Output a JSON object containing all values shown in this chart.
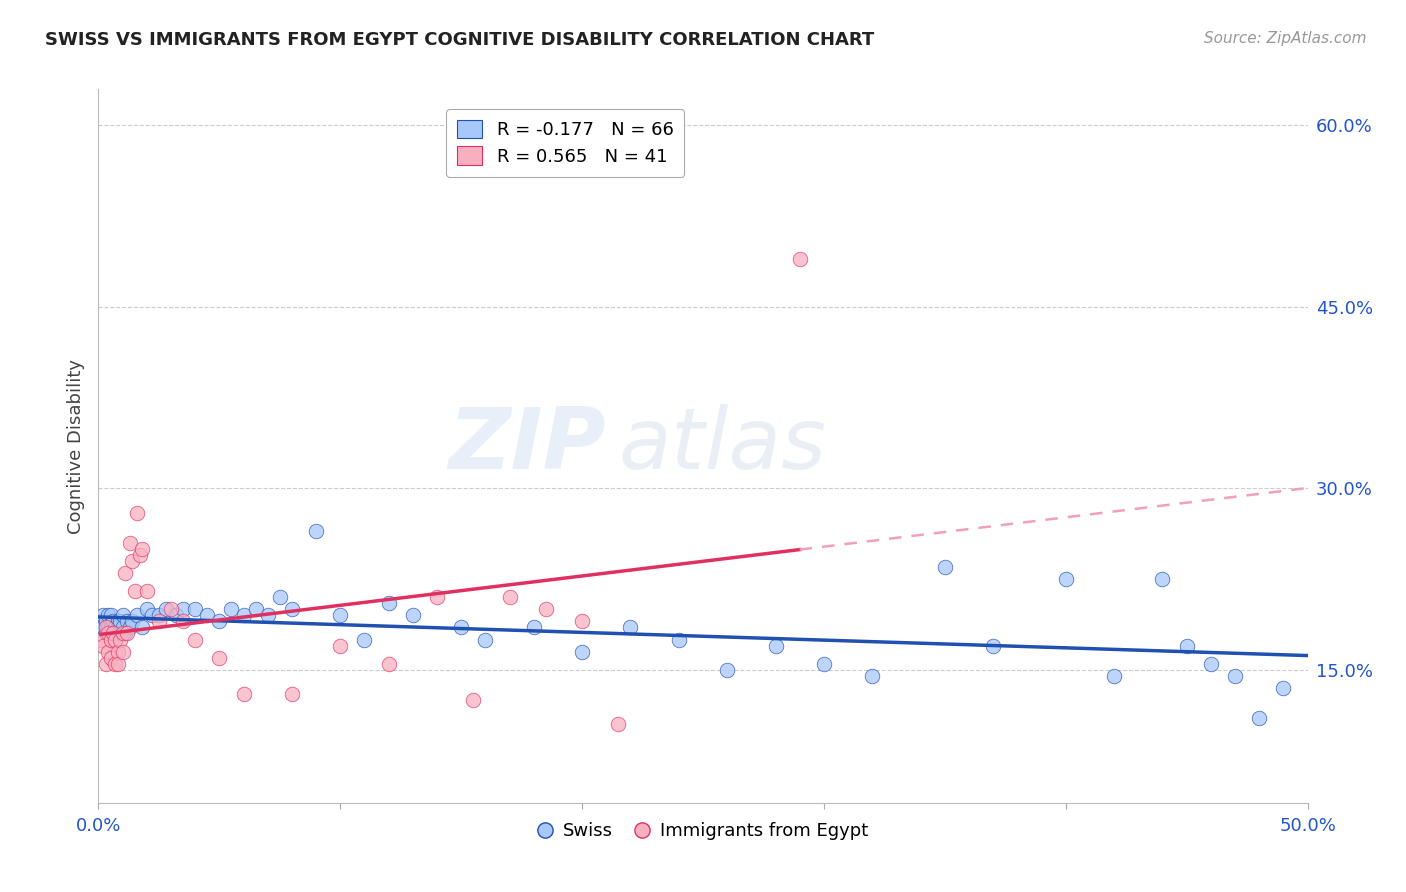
{
  "title": "SWISS VS IMMIGRANTS FROM EGYPT COGNITIVE DISABILITY CORRELATION CHART",
  "source": "Source: ZipAtlas.com",
  "ylabel_label": "Cognitive Disability",
  "xmin": 0.0,
  "xmax": 0.5,
  "ymin": 0.04,
  "ymax": 0.63,
  "yticks": [
    0.15,
    0.3,
    0.45,
    0.6
  ],
  "ytick_labels": [
    "15.0%",
    "30.0%",
    "45.0%",
    "60.0%"
  ],
  "xticks": [
    0.0,
    0.1,
    0.2,
    0.3,
    0.4,
    0.5
  ],
  "xtick_labels": [
    "0.0%",
    "",
    "",
    "",
    "",
    "50.0%"
  ],
  "swiss_color": "#a8c8fa",
  "egypt_color": "#f8b0c0",
  "swiss_line_color": "#2050b0",
  "egypt_line_color": "#e03060",
  "egypt_dash_color": "#f0a0b8",
  "swiss_R": -0.177,
  "swiss_N": 66,
  "egypt_R": 0.565,
  "egypt_N": 41,
  "watermark": "ZIPatlas",
  "background_color": "#ffffff",
  "swiss_x": [
    0.001,
    0.002,
    0.002,
    0.003,
    0.003,
    0.004,
    0.004,
    0.005,
    0.005,
    0.005,
    0.006,
    0.006,
    0.007,
    0.007,
    0.008,
    0.008,
    0.009,
    0.009,
    0.01,
    0.01,
    0.011,
    0.012,
    0.013,
    0.014,
    0.016,
    0.018,
    0.02,
    0.022,
    0.025,
    0.028,
    0.032,
    0.035,
    0.04,
    0.045,
    0.05,
    0.055,
    0.06,
    0.065,
    0.07,
    0.075,
    0.08,
    0.09,
    0.1,
    0.11,
    0.12,
    0.13,
    0.15,
    0.16,
    0.18,
    0.2,
    0.22,
    0.24,
    0.26,
    0.28,
    0.3,
    0.32,
    0.35,
    0.37,
    0.4,
    0.42,
    0.44,
    0.45,
    0.46,
    0.47,
    0.48,
    0.49
  ],
  "swiss_y": [
    0.19,
    0.185,
    0.195,
    0.18,
    0.19,
    0.185,
    0.195,
    0.175,
    0.185,
    0.195,
    0.18,
    0.19,
    0.185,
    0.175,
    0.19,
    0.185,
    0.18,
    0.19,
    0.185,
    0.195,
    0.18,
    0.19,
    0.185,
    0.19,
    0.195,
    0.185,
    0.2,
    0.195,
    0.195,
    0.2,
    0.195,
    0.2,
    0.2,
    0.195,
    0.19,
    0.2,
    0.195,
    0.2,
    0.195,
    0.21,
    0.2,
    0.265,
    0.195,
    0.175,
    0.205,
    0.195,
    0.185,
    0.175,
    0.185,
    0.165,
    0.185,
    0.175,
    0.15,
    0.17,
    0.155,
    0.145,
    0.235,
    0.17,
    0.225,
    0.145,
    0.225,
    0.17,
    0.155,
    0.145,
    0.11,
    0.135
  ],
  "egypt_x": [
    0.001,
    0.002,
    0.003,
    0.003,
    0.004,
    0.004,
    0.005,
    0.005,
    0.006,
    0.007,
    0.007,
    0.008,
    0.008,
    0.009,
    0.01,
    0.01,
    0.011,
    0.012,
    0.013,
    0.014,
    0.015,
    0.016,
    0.017,
    0.018,
    0.02,
    0.025,
    0.03,
    0.035,
    0.04,
    0.05,
    0.06,
    0.08,
    0.1,
    0.12,
    0.14,
    0.155,
    0.17,
    0.185,
    0.2,
    0.215,
    0.29
  ],
  "egypt_y": [
    0.175,
    0.17,
    0.155,
    0.185,
    0.165,
    0.18,
    0.16,
    0.175,
    0.18,
    0.155,
    0.175,
    0.165,
    0.155,
    0.175,
    0.165,
    0.18,
    0.23,
    0.18,
    0.255,
    0.24,
    0.215,
    0.28,
    0.245,
    0.25,
    0.215,
    0.19,
    0.2,
    0.19,
    0.175,
    0.16,
    0.13,
    0.13,
    0.17,
    0.155,
    0.21,
    0.125,
    0.21,
    0.2,
    0.19,
    0.105,
    0.49
  ]
}
